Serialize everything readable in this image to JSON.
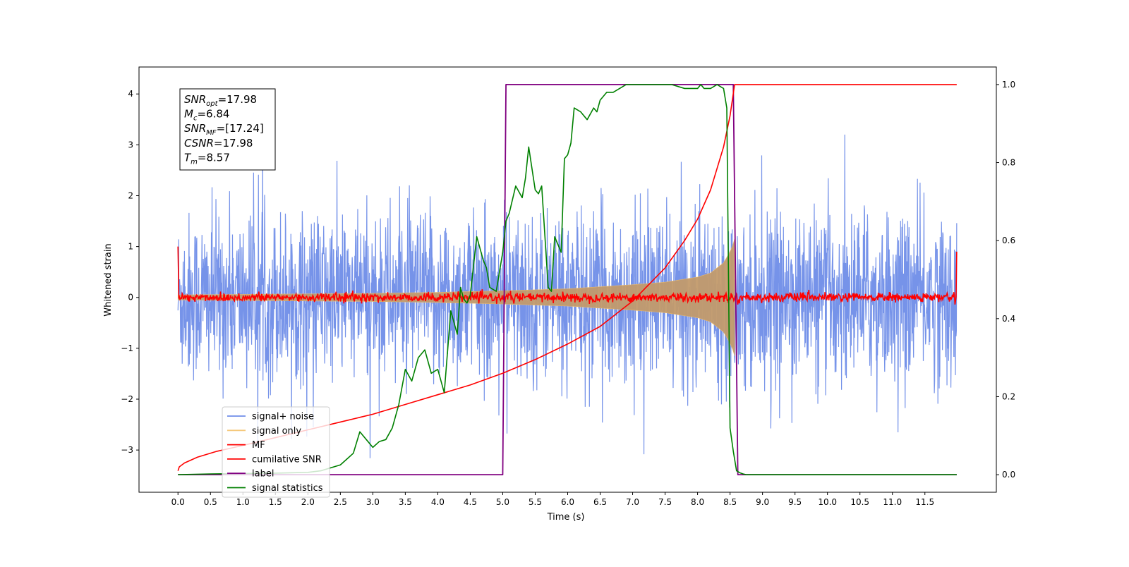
{
  "chart_data": {
    "type": "line",
    "title": "",
    "xlabel": "Time (s)",
    "ylabel": "Whitened strain",
    "xlim": [
      -0.6,
      12.6
    ],
    "ylim": [
      -3.83,
      4.53
    ],
    "y2lim": [
      -0.045,
      1.045
    ],
    "x_ticks": [
      0.0,
      0.5,
      1.0,
      1.5,
      2.0,
      2.5,
      3.0,
      3.5,
      4.0,
      4.5,
      5.0,
      5.5,
      6.0,
      6.5,
      7.0,
      7.5,
      8.0,
      8.5,
      9.0,
      9.5,
      10.0,
      10.5,
      11.0,
      11.5
    ],
    "x_tick_labels": [
      "0.0",
      "0.5",
      "1.0",
      "1.5",
      "2.0",
      "2.5",
      "3.0",
      "3.5",
      "4.0",
      "4.5",
      "5.0",
      "5.5",
      "6.0",
      "6.5",
      "7.0",
      "7.5",
      "8.0",
      "8.5",
      "9.0",
      "9.5",
      "10.0",
      "10.5",
      "11.0",
      "11.5"
    ],
    "y_ticks": [
      -3,
      -2,
      -1,
      0,
      1,
      2,
      3,
      4
    ],
    "y_tick_labels": [
      "−3",
      "−2",
      "−1",
      "0",
      "1",
      "2",
      "3",
      "4"
    ],
    "y2_ticks": [
      0.0,
      0.2,
      0.4,
      0.6,
      0.8,
      1.0
    ],
    "y2_tick_labels": [
      "0.0",
      "0.2",
      "0.4",
      "0.6",
      "0.8",
      "1.0"
    ],
    "grid": false,
    "legend_position": "lower-left",
    "series": [
      {
        "name": "signal+ noise",
        "axis": "left",
        "color": "#6f8de8",
        "style": "noise band, white noise approx. spanning -2.5..2.5 with spikes to about ±3.2, x from 0.0 to 11.99"
      },
      {
        "name": "signal only",
        "axis": "left",
        "color": "#c29a6c",
        "envelope": {
          "x": [
            0.0,
            1.0,
            2.0,
            3.0,
            4.0,
            5.0,
            6.0,
            7.0,
            7.5,
            8.0,
            8.2,
            8.4,
            8.5,
            8.55,
            8.57
          ],
          "amplitude": [
            0.05,
            0.06,
            0.07,
            0.08,
            0.1,
            0.13,
            0.17,
            0.25,
            0.3,
            0.4,
            0.48,
            0.68,
            0.9,
            1.05,
            1.15
          ]
        }
      },
      {
        "name": "MF",
        "axis": "left",
        "color": "#ff0000",
        "style": "noisy trace around 0 (about ±0.1) from 0.0 to 11.99, starting near 1.0 at x=0 and rising to 0.9 at x=11.99"
      },
      {
        "name": "cumilative SNR",
        "axis": "right",
        "color": "#ff0000",
        "x": [
          0.0,
          0.02,
          0.1,
          0.3,
          0.6,
          1.0,
          1.5,
          2.0,
          2.5,
          3.0,
          3.5,
          4.0,
          4.5,
          5.0,
          5.5,
          6.0,
          6.5,
          7.0,
          7.5,
          7.8,
          8.0,
          8.2,
          8.4,
          8.5,
          8.57,
          8.6,
          11.99
        ],
        "y": [
          0.01,
          0.02,
          0.03,
          0.045,
          0.06,
          0.075,
          0.095,
          0.115,
          0.135,
          0.155,
          0.18,
          0.205,
          0.23,
          0.26,
          0.295,
          0.335,
          0.38,
          0.445,
          0.53,
          0.6,
          0.655,
          0.73,
          0.84,
          0.92,
          1.0,
          1.0,
          1.0
        ]
      },
      {
        "name": "label",
        "axis": "right",
        "color": "#800080",
        "x": [
          0.0,
          5.0,
          5.05,
          8.55,
          8.62,
          11.99
        ],
        "y": [
          0.0,
          0.0,
          1.0,
          1.0,
          0.0,
          0.0
        ]
      },
      {
        "name": "signal statistics",
        "axis": "right",
        "color": "#008000",
        "x": [
          0.0,
          0.5,
          1.0,
          1.5,
          2.0,
          2.2,
          2.4,
          2.5,
          2.6,
          2.7,
          2.8,
          2.9,
          3.0,
          3.1,
          3.2,
          3.3,
          3.4,
          3.5,
          3.6,
          3.7,
          3.8,
          3.9,
          4.0,
          4.1,
          4.2,
          4.3,
          4.35,
          4.4,
          4.45,
          4.5,
          4.6,
          4.7,
          4.75,
          4.8,
          4.9,
          5.0,
          5.05,
          5.1,
          5.2,
          5.3,
          5.35,
          5.4,
          5.5,
          5.55,
          5.6,
          5.7,
          5.75,
          5.8,
          5.9,
          5.95,
          6.0,
          6.05,
          6.1,
          6.2,
          6.3,
          6.4,
          6.45,
          6.5,
          6.6,
          6.7,
          6.8,
          6.9,
          7.0,
          7.1,
          7.2,
          7.3,
          7.4,
          7.6,
          7.8,
          8.0,
          8.05,
          8.1,
          8.2,
          8.3,
          8.4,
          8.45,
          8.5,
          8.55,
          8.6,
          8.65,
          8.7,
          8.75,
          8.8,
          9.0,
          10.0,
          11.0,
          11.99
        ],
        "y": [
          0.0,
          0.002,
          0.003,
          0.004,
          0.006,
          0.01,
          0.02,
          0.025,
          0.04,
          0.055,
          0.11,
          0.09,
          0.07,
          0.085,
          0.09,
          0.12,
          0.18,
          0.27,
          0.24,
          0.3,
          0.32,
          0.26,
          0.27,
          0.21,
          0.42,
          0.36,
          0.48,
          0.45,
          0.44,
          0.46,
          0.61,
          0.55,
          0.53,
          0.48,
          0.47,
          0.57,
          0.65,
          0.67,
          0.74,
          0.71,
          0.76,
          0.84,
          0.73,
          0.72,
          0.74,
          0.48,
          0.47,
          0.61,
          0.57,
          0.81,
          0.82,
          0.85,
          0.94,
          0.93,
          0.91,
          0.94,
          0.93,
          0.96,
          0.98,
          0.98,
          0.99,
          1.0,
          1.0,
          1.0,
          1.0,
          1.0,
          1.0,
          1.0,
          0.99,
          0.99,
          1.0,
          0.99,
          0.99,
          1.0,
          0.99,
          0.94,
          0.12,
          0.06,
          0.01,
          0.005,
          0.002,
          0.0,
          0.0,
          0.0,
          0.0,
          0.0,
          0.0
        ]
      }
    ],
    "annotation": {
      "lines": [
        {
          "sym": "SNR",
          "sub": "opt",
          "val": "=17.98"
        },
        {
          "sym": "M",
          "sub": "c",
          "val": "=6.84"
        },
        {
          "sym": "SNR",
          "sub": "MF",
          "val": "=[17.24]"
        },
        {
          "sym": "CSNR",
          "sub": "",
          "val": "=17.98"
        },
        {
          "sym": "T",
          "sub": "m",
          "val": "=8.57"
        }
      ]
    }
  }
}
